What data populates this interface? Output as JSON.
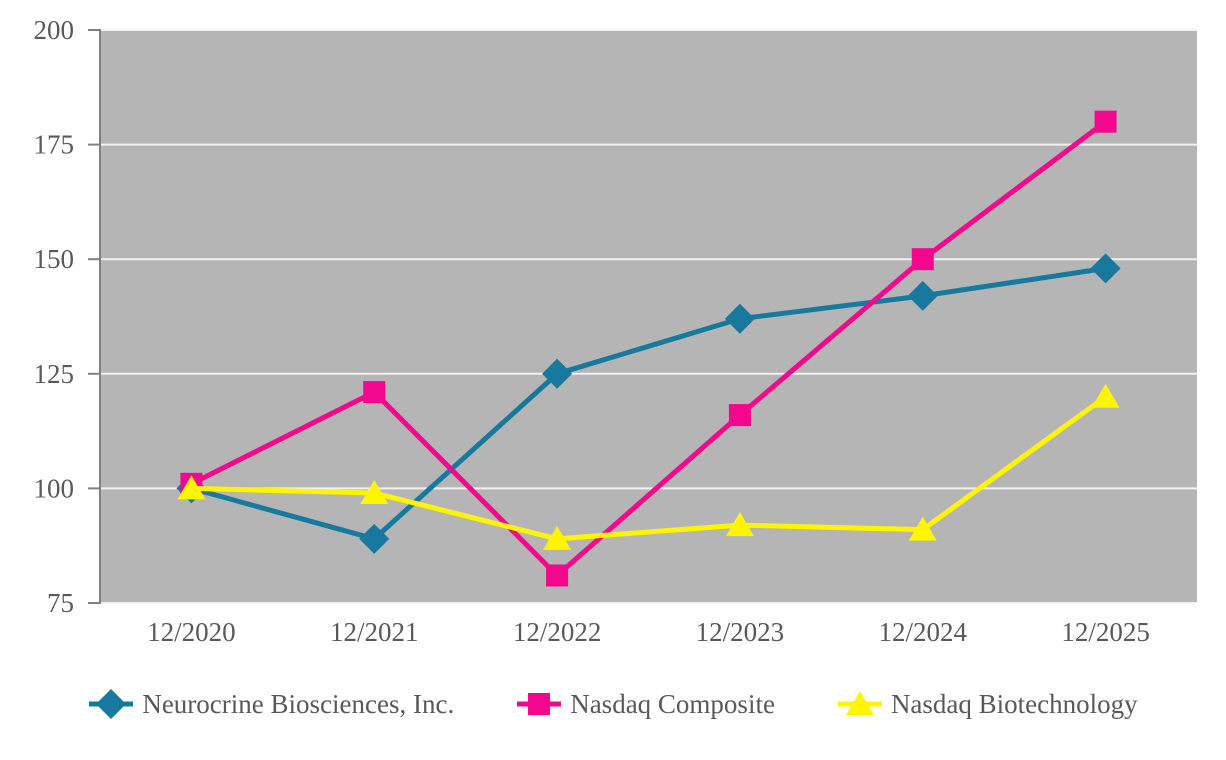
{
  "chart_data": {
    "type": "line",
    "title": "",
    "xlabel": "",
    "ylabel": "",
    "categories": [
      "12/2020",
      "12/2021",
      "12/2022",
      "12/2023",
      "12/2024",
      "12/2025"
    ],
    "series": [
      {
        "name": "Neurocrine Biosciences, Inc.",
        "marker": "diamond",
        "color": "#17799D",
        "values": [
          100,
          89,
          125,
          137,
          142,
          148
        ]
      },
      {
        "name": "Nasdaq Composite",
        "marker": "square",
        "color": "#F2078D",
        "values": [
          101,
          121,
          81,
          116,
          150,
          180
        ]
      },
      {
        "name": "Nasdaq Biotechnology",
        "marker": "triangle",
        "color": "#FFF501",
        "values": [
          100,
          99,
          89,
          92,
          91,
          120
        ]
      }
    ],
    "ylim": [
      75,
      200
    ],
    "yticks": [
      75,
      100,
      125,
      150,
      175,
      200
    ],
    "grid": "horizontal",
    "legend_position": "bottom",
    "plot_background": "#B5B5B5",
    "gridline_color": "#F2F2F2",
    "axis_color": "#808080",
    "label_color": "#595959"
  }
}
